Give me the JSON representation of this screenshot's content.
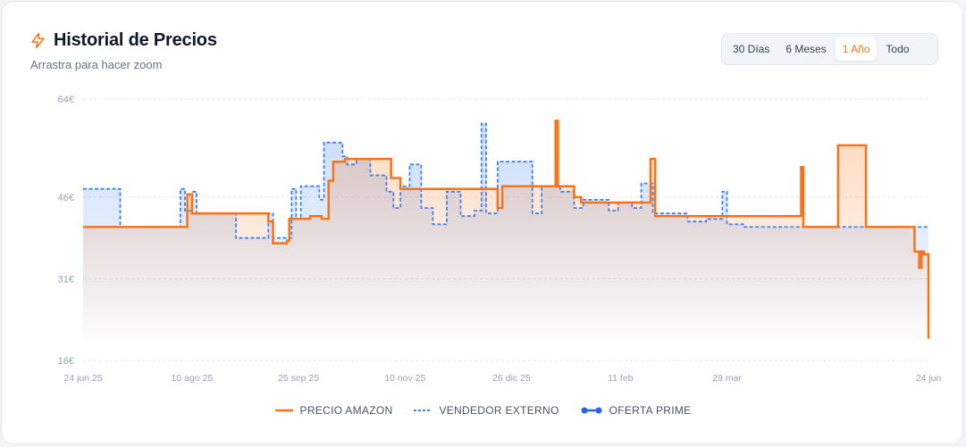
{
  "header": {
    "title": "Historial de Precios",
    "subtitle": "Arrastra para hacer zoom",
    "icon": "lightning-icon",
    "accent": "#f97316"
  },
  "range_selector": {
    "options": [
      "30 Días",
      "6 Meses",
      "1 Año",
      "Todo"
    ],
    "selected": "1 Año"
  },
  "legend": {
    "amazon": "PRECIO AMAZON",
    "external": "VENDEDOR EXTERNO",
    "prime": "OFERTA PRIME"
  },
  "colors": {
    "amazon": "#f97316",
    "external": "#3b82f6",
    "prime": "#2563eb",
    "grid": "#e5e7eb"
  },
  "chart_data": {
    "type": "line",
    "title": "Historial de Precios",
    "xlabel": "",
    "ylabel": "",
    "y_ticks": [
      "16€",
      "31€",
      "46€",
      "64€"
    ],
    "y_tick_values": [
      16,
      31,
      46,
      64
    ],
    "ylim": [
      16,
      64
    ],
    "x_ticks": [
      "24 jun 25",
      "10 ago 25",
      "25 sep 25",
      "10 nov 25",
      "26 dic 25",
      "11 feb",
      "29 mar",
      "24 jun"
    ],
    "x_tick_dates": [
      "2025-06-24",
      "2025-08-10",
      "2025-09-25",
      "2025-11-10",
      "2025-12-26",
      "2026-02-11",
      "2026-03-29",
      "2026-06-24"
    ],
    "grid": true,
    "step": true,
    "series": [
      {
        "name": "PRECIO AMAZON",
        "style": "solid",
        "color": "#f97316",
        "points": [
          [
            "2025-06-24",
            40.5
          ],
          [
            "2025-08-04",
            40.5
          ],
          [
            "2025-08-08",
            46.5
          ],
          [
            "2025-08-10",
            43
          ],
          [
            "2025-08-27",
            43
          ],
          [
            "2025-09-12",
            41.5
          ],
          [
            "2025-09-14",
            37.5
          ],
          [
            "2025-09-20",
            38
          ],
          [
            "2025-09-21",
            42
          ],
          [
            "2025-09-30",
            42.5
          ],
          [
            "2025-10-05",
            42
          ],
          [
            "2025-10-08",
            49
          ],
          [
            "2025-10-10",
            52.5
          ],
          [
            "2025-10-15",
            53
          ],
          [
            "2025-11-01",
            53
          ],
          [
            "2025-11-04",
            49.5
          ],
          [
            "2025-11-08",
            47.5
          ],
          [
            "2025-11-16",
            47.5
          ],
          [
            "2025-12-20",
            44
          ],
          [
            "2025-12-22",
            48
          ],
          [
            "2026-01-10",
            48
          ],
          [
            "2026-01-14",
            60
          ],
          [
            "2026-01-15",
            48
          ],
          [
            "2026-01-22",
            46
          ],
          [
            "2026-01-25",
            45
          ],
          [
            "2026-02-22",
            45
          ],
          [
            "2026-02-24",
            53
          ],
          [
            "2026-02-26",
            42.5
          ],
          [
            "2026-04-30",
            51.5
          ],
          [
            "2026-05-01",
            40.5
          ],
          [
            "2026-05-16",
            55.5
          ],
          [
            "2026-05-27",
            55.5
          ],
          [
            "2026-05-28",
            40.5
          ],
          [
            "2026-06-13",
            40.5
          ],
          [
            "2026-06-18",
            36
          ],
          [
            "2026-06-20",
            33
          ],
          [
            "2026-06-21",
            36
          ],
          [
            "2026-06-22",
            35.5
          ],
          [
            "2026-06-24",
            20
          ]
        ]
      },
      {
        "name": "VENDEDOR EXTERNO",
        "style": "dashed",
        "color": "#3b82f6",
        "points": [
          [
            "2025-06-24",
            47.5
          ],
          [
            "2025-07-09",
            47.5
          ],
          [
            "2025-07-10",
            40.5
          ],
          [
            "2025-08-03",
            40.5
          ],
          [
            "2025-08-05",
            47.5
          ],
          [
            "2025-08-07",
            43.5
          ],
          [
            "2025-08-10",
            47
          ],
          [
            "2025-08-12",
            43
          ],
          [
            "2025-08-27",
            43
          ],
          [
            "2025-08-29",
            38.5
          ],
          [
            "2025-09-10",
            38.5
          ],
          [
            "2025-09-12",
            43
          ],
          [
            "2025-09-14",
            38.5
          ],
          [
            "2025-09-20",
            38.5
          ],
          [
            "2025-09-22",
            47.5
          ],
          [
            "2025-09-24",
            42
          ],
          [
            "2025-09-26",
            48
          ],
          [
            "2025-10-02",
            48
          ],
          [
            "2025-10-04",
            45.5
          ],
          [
            "2025-10-06",
            56
          ],
          [
            "2025-10-12",
            56
          ],
          [
            "2025-10-14",
            53.5
          ],
          [
            "2025-10-16",
            52
          ],
          [
            "2025-10-20",
            53
          ],
          [
            "2025-10-26",
            50
          ],
          [
            "2025-11-02",
            47
          ],
          [
            "2025-11-05",
            44
          ],
          [
            "2025-11-08",
            48
          ],
          [
            "2025-11-11",
            47.5
          ],
          [
            "2025-11-12",
            52
          ],
          [
            "2025-11-17",
            44
          ],
          [
            "2025-11-22",
            41
          ],
          [
            "2025-11-25",
            41
          ],
          [
            "2025-11-28",
            47
          ],
          [
            "2025-12-04",
            42.5
          ],
          [
            "2025-12-10",
            43.5
          ],
          [
            "2025-12-13",
            59.5
          ],
          [
            "2025-12-15",
            43
          ],
          [
            "2025-12-20",
            52.5
          ],
          [
            "2025-12-28",
            52.5
          ],
          [
            "2026-01-01",
            52.5
          ],
          [
            "2026-01-04",
            43
          ],
          [
            "2026-01-08",
            48
          ],
          [
            "2026-01-16",
            47
          ],
          [
            "2026-01-22",
            44
          ],
          [
            "2026-01-26",
            45.5
          ],
          [
            "2026-02-02",
            45.5
          ],
          [
            "2026-02-06",
            43.5
          ],
          [
            "2026-02-10",
            45
          ],
          [
            "2026-02-16",
            44
          ],
          [
            "2026-02-20",
            48.5
          ],
          [
            "2026-02-25",
            43
          ],
          [
            "2026-03-10",
            43
          ],
          [
            "2026-03-12",
            41.5
          ],
          [
            "2026-03-20",
            42
          ],
          [
            "2026-03-27",
            47
          ],
          [
            "2026-03-29",
            41
          ],
          [
            "2026-04-05",
            40.5
          ],
          [
            "2026-06-24",
            40.5
          ]
        ]
      }
    ]
  }
}
